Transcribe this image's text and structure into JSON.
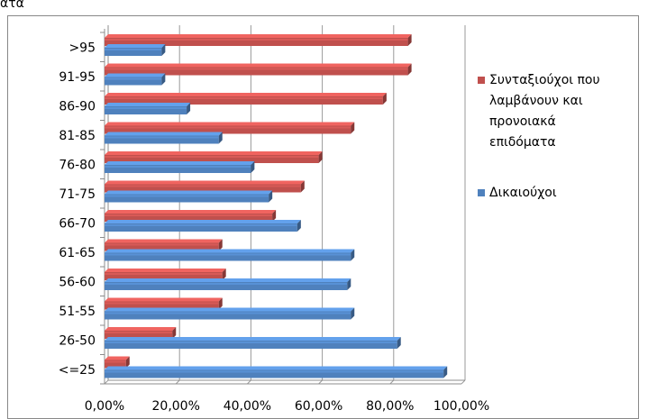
{
  "top_fragment": "ατα",
  "chart_data": {
    "type": "bar",
    "orientation": "horizontal",
    "categories": [
      ">95",
      "91-95",
      "86-90",
      "81-85",
      "76-80",
      "71-75",
      "66-70",
      "61-65",
      "56-60",
      "51-55",
      "26-50",
      "<=25"
    ],
    "series": [
      {
        "name": "Συνταξιούχοι που λαμβάνουν και προνοιακά επιδόματα",
        "legend_lines": [
          "Συνταξιούχοι που",
          "λαμβάνουν και",
          "προνοιακά",
          "επιδόματα"
        ],
        "color": "#C0504D",
        "values": [
          85,
          85,
          78,
          69,
          60,
          55,
          47,
          32,
          33,
          32,
          19,
          6
        ]
      },
      {
        "name": "Δικαιούχοι",
        "legend_lines": [
          "Δικαιούχοι"
        ],
        "color": "#4F81BD",
        "values": [
          16,
          16,
          23,
          32,
          41,
          46,
          54,
          69,
          68,
          69,
          82,
          95
        ]
      }
    ],
    "x_ticks": [
      "0,00%",
      "20,00%",
      "40,00%",
      "60,00%",
      "80,00%",
      "100,00%"
    ],
    "xlim": [
      0,
      100
    ],
    "grid": true,
    "legend_position": "right",
    "style": "3d-clustered-bar"
  }
}
